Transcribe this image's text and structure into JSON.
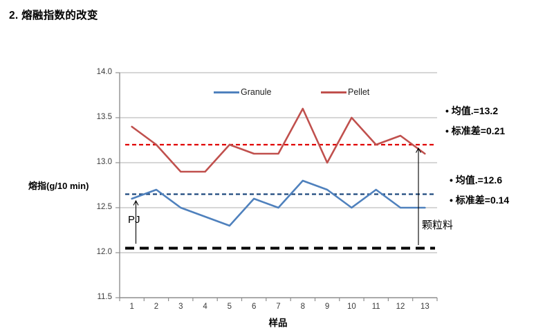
{
  "page": {
    "title": "2. 熔融指数的改变"
  },
  "chart": {
    "annotations": {
      "pellet_stats": [
        "• 均值.=13.2",
        "• 标准差=0.21"
      ],
      "granule_stats": [
        "• 均值.=12.6",
        "• 标准差=0.14"
      ],
      "pj_label": "PJ",
      "granule_material_label": "颗粒料"
    }
  },
  "chart_data": {
    "type": "line",
    "title": "",
    "xlabel": "样品",
    "ylabel": "熔指(g/10 min)",
    "x": [
      1,
      2,
      3,
      4,
      5,
      6,
      7,
      8,
      9,
      10,
      11,
      12,
      13
    ],
    "series": [
      {
        "name": "Granule",
        "color": "#4F81BD",
        "values": [
          12.6,
          12.7,
          12.5,
          12.4,
          12.3,
          12.6,
          12.5,
          12.8,
          12.7,
          12.5,
          12.7,
          12.5,
          12.5
        ]
      },
      {
        "name": "Pellet",
        "color": "#C0504D",
        "values": [
          13.4,
          13.2,
          12.9,
          12.9,
          13.2,
          13.1,
          13.1,
          13.6,
          13.0,
          13.5,
          13.2,
          13.3,
          13.1
        ]
      }
    ],
    "reference_lines": [
      {
        "label": "Pellet mean",
        "value": 13.2,
        "color": "#E00000",
        "style": "dashed"
      },
      {
        "label": "Granule mean",
        "value": 12.65,
        "color": "#1F497D",
        "style": "dashed"
      },
      {
        "label": "baseline",
        "value": 12.05,
        "color": "#000000",
        "style": "dashed-thick"
      }
    ],
    "ylim": [
      11.5,
      14.0
    ],
    "ytick_step": 0.5,
    "grid": true,
    "legend_position": "top-inside"
  }
}
